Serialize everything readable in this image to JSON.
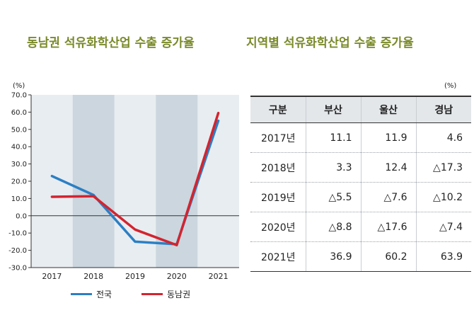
{
  "titles": {
    "left": "동남권 석유화학산업 수출 증가율",
    "right": "지역별 석유화학산업 수출 증가율"
  },
  "chart_data": {
    "type": "line",
    "unit": "(%)",
    "categories": [
      "2017",
      "2018",
      "2019",
      "2020",
      "2021"
    ],
    "x_tick_labels": [
      "2017",
      "2018",
      "2019",
      "2020",
      "2021"
    ],
    "y_ticks": [
      "70.0",
      "60.0",
      "50.0",
      "40.0",
      "30.0",
      "20.0",
      "10.0",
      "0.0",
      "-10.0",
      "-20.0",
      "-30.0"
    ],
    "ylim": [
      -30,
      70
    ],
    "shaded_bands": [
      "2018",
      "2020"
    ],
    "legend_position": "bottom",
    "series": [
      {
        "name": "전국",
        "color": "#2b7fc4",
        "values": [
          23,
          12,
          -15,
          -16.5,
          55
        ]
      },
      {
        "name": "동남권",
        "color": "#d3242f",
        "values": [
          11,
          11.3,
          -8,
          -17,
          59.5
        ]
      }
    ]
  },
  "table": {
    "unit": "(%)",
    "headers": [
      "구분",
      "부산",
      "울산",
      "경남"
    ],
    "rows": [
      [
        "2017년",
        "11.1",
        "11.9",
        "4.6"
      ],
      [
        "2018년",
        "3.3",
        "12.4",
        "△17.3"
      ],
      [
        "2019년",
        "△5.5",
        "△7.6",
        "△10.2"
      ],
      [
        "2020년",
        "△8.8",
        "△17.6",
        "△7.4"
      ],
      [
        "2021년",
        "36.9",
        "60.2",
        "63.9"
      ]
    ]
  },
  "legend": {
    "national": "전국",
    "dongnam": "동남권"
  }
}
